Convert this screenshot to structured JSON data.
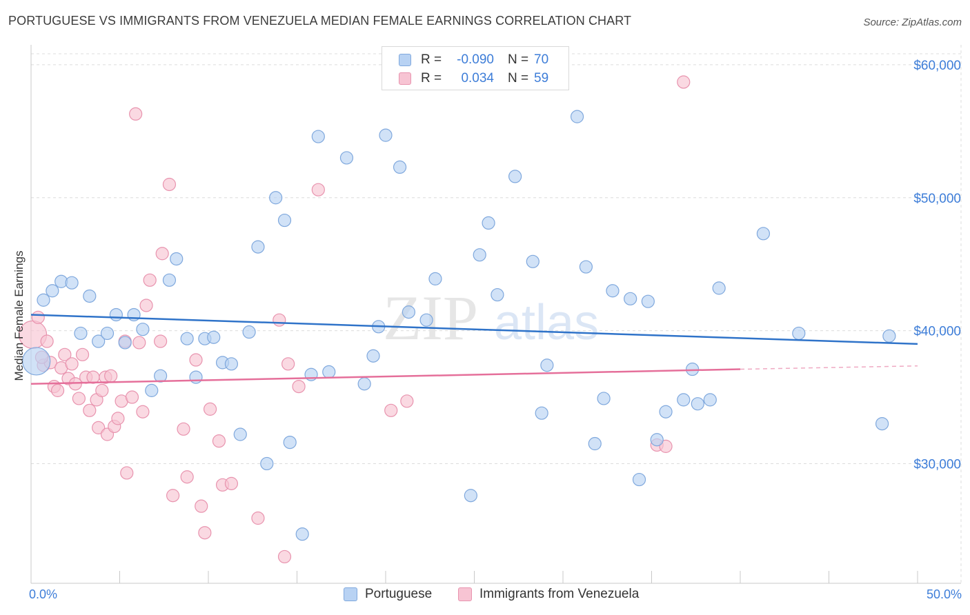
{
  "header": {
    "title": "PORTUGUESE VS IMMIGRANTS FROM VENEZUELA MEDIAN FEMALE EARNINGS CORRELATION CHART",
    "source": "Source: ZipAtlas.com"
  },
  "watermark": "ZIPatlas",
  "legend": {
    "rows": [
      {
        "r_label": "R =",
        "r_value": "-0.090",
        "n_label": "N =",
        "n_value": "70"
      },
      {
        "r_label": "R =",
        "r_value": "0.034",
        "n_label": "N =",
        "n_value": "59"
      }
    ]
  },
  "bottom_legend": {
    "items": [
      "Portuguese",
      "Immigrants from Venezuela"
    ]
  },
  "x_axis": {
    "min_label": "0.0%",
    "max_label": "50.0%"
  },
  "y_axis": {
    "title": "Median Female Earnings"
  },
  "colors": {
    "blue_fill": "#b8d2f3",
    "blue_stroke": "#7fa8dd",
    "blue_line": "#2f73c9",
    "pink_fill": "#f7c4d3",
    "pink_stroke": "#e893ae",
    "pink_line": "#e56f9a",
    "tick_label": "#3d7dd8",
    "grid": "#dcdcdc"
  },
  "chart_data": {
    "type": "scatter",
    "xlim": [
      0,
      50
    ],
    "ylim": [
      21000,
      61500
    ],
    "y_ticks": [
      30000,
      40000,
      50000,
      60000
    ],
    "y_tick_labels": [
      "$30,000",
      "$40,000",
      "$50,000",
      "$60,000"
    ],
    "grid": true,
    "series": [
      {
        "name": "Portuguese",
        "trend": {
          "x": [
            0,
            50
          ],
          "y": [
            41200,
            39000
          ]
        },
        "points": [
          {
            "x": 0.3,
            "y": 37700,
            "big": true
          },
          {
            "x": 0.7,
            "y": 42300
          },
          {
            "x": 1.2,
            "y": 43000
          },
          {
            "x": 1.7,
            "y": 43700
          },
          {
            "x": 2.3,
            "y": 43600
          },
          {
            "x": 2.8,
            "y": 39800
          },
          {
            "x": 3.3,
            "y": 42600
          },
          {
            "x": 3.8,
            "y": 39200
          },
          {
            "x": 4.3,
            "y": 39800
          },
          {
            "x": 4.8,
            "y": 41200
          },
          {
            "x": 5.3,
            "y": 39100
          },
          {
            "x": 5.8,
            "y": 41200
          },
          {
            "x": 6.3,
            "y": 40100
          },
          {
            "x": 6.8,
            "y": 35500
          },
          {
            "x": 7.3,
            "y": 36600
          },
          {
            "x": 7.8,
            "y": 43800
          },
          {
            "x": 8.2,
            "y": 45400
          },
          {
            "x": 8.8,
            "y": 39400
          },
          {
            "x": 9.3,
            "y": 36500
          },
          {
            "x": 9.8,
            "y": 39400
          },
          {
            "x": 10.3,
            "y": 39500
          },
          {
            "x": 10.8,
            "y": 37600
          },
          {
            "x": 11.3,
            "y": 37500
          },
          {
            "x": 11.8,
            "y": 32200
          },
          {
            "x": 12.3,
            "y": 39900
          },
          {
            "x": 12.8,
            "y": 46300
          },
          {
            "x": 13.3,
            "y": 30000
          },
          {
            "x": 13.8,
            "y": 50000
          },
          {
            "x": 14.3,
            "y": 48300
          },
          {
            "x": 14.6,
            "y": 31600
          },
          {
            "x": 15.3,
            "y": 24700
          },
          {
            "x": 15.8,
            "y": 36700
          },
          {
            "x": 16.2,
            "y": 54600
          },
          {
            "x": 16.8,
            "y": 36900
          },
          {
            "x": 17.8,
            "y": 53000
          },
          {
            "x": 18.8,
            "y": 36000
          },
          {
            "x": 19.3,
            "y": 38100
          },
          {
            "x": 19.6,
            "y": 40300
          },
          {
            "x": 20.0,
            "y": 54700
          },
          {
            "x": 20.8,
            "y": 52300
          },
          {
            "x": 21.3,
            "y": 41400
          },
          {
            "x": 22.3,
            "y": 40800
          },
          {
            "x": 22.8,
            "y": 43900
          },
          {
            "x": 24.8,
            "y": 27600
          },
          {
            "x": 25.3,
            "y": 45700
          },
          {
            "x": 25.8,
            "y": 48100
          },
          {
            "x": 26.3,
            "y": 42700
          },
          {
            "x": 27.3,
            "y": 51600
          },
          {
            "x": 28.3,
            "y": 45200
          },
          {
            "x": 28.8,
            "y": 33800
          },
          {
            "x": 29.1,
            "y": 37400
          },
          {
            "x": 30.8,
            "y": 56100
          },
          {
            "x": 31.3,
            "y": 44800
          },
          {
            "x": 31.8,
            "y": 31500
          },
          {
            "x": 32.3,
            "y": 34900
          },
          {
            "x": 32.8,
            "y": 43000
          },
          {
            "x": 33.8,
            "y": 42400
          },
          {
            "x": 34.3,
            "y": 28800
          },
          {
            "x": 34.8,
            "y": 42200
          },
          {
            "x": 35.3,
            "y": 31800
          },
          {
            "x": 35.8,
            "y": 33900
          },
          {
            "x": 36.8,
            "y": 34800
          },
          {
            "x": 37.3,
            "y": 37100
          },
          {
            "x": 37.6,
            "y": 34500
          },
          {
            "x": 38.3,
            "y": 34800
          },
          {
            "x": 38.8,
            "y": 43200
          },
          {
            "x": 41.3,
            "y": 47300
          },
          {
            "x": 43.3,
            "y": 39800
          },
          {
            "x": 48.0,
            "y": 33000
          },
          {
            "x": 48.4,
            "y": 39600
          }
        ]
      },
      {
        "name": "Immigrants from Venezuela",
        "trend": {
          "x": [
            0,
            40
          ],
          "y": [
            36000,
            37100
          ]
        },
        "trend_dashed": {
          "x": [
            40,
            50
          ],
          "y": [
            37100,
            37350
          ]
        },
        "points": [
          {
            "x": 0.1,
            "y": 39700,
            "big": true
          },
          {
            "x": 0.4,
            "y": 41000
          },
          {
            "x": 0.7,
            "y": 37400
          },
          {
            "x": 0.9,
            "y": 39200
          },
          {
            "x": 1.1,
            "y": 37600
          },
          {
            "x": 1.3,
            "y": 35800
          },
          {
            "x": 1.5,
            "y": 35500
          },
          {
            "x": 1.7,
            "y": 37200
          },
          {
            "x": 1.9,
            "y": 38200
          },
          {
            "x": 2.1,
            "y": 36400
          },
          {
            "x": 2.3,
            "y": 37500
          },
          {
            "x": 2.5,
            "y": 36000
          },
          {
            "x": 2.7,
            "y": 34900
          },
          {
            "x": 2.9,
            "y": 38200
          },
          {
            "x": 3.1,
            "y": 36500
          },
          {
            "x": 3.3,
            "y": 34000
          },
          {
            "x": 3.5,
            "y": 36500
          },
          {
            "x": 3.7,
            "y": 34800
          },
          {
            "x": 3.8,
            "y": 32700
          },
          {
            "x": 4.0,
            "y": 35500
          },
          {
            "x": 4.2,
            "y": 36500
          },
          {
            "x": 4.3,
            "y": 32200
          },
          {
            "x": 4.5,
            "y": 36600
          },
          {
            "x": 4.7,
            "y": 32800
          },
          {
            "x": 4.9,
            "y": 33400
          },
          {
            "x": 5.1,
            "y": 34700
          },
          {
            "x": 5.3,
            "y": 39200
          },
          {
            "x": 5.4,
            "y": 29300
          },
          {
            "x": 5.7,
            "y": 35000
          },
          {
            "x": 5.9,
            "y": 56300
          },
          {
            "x": 6.1,
            "y": 39100
          },
          {
            "x": 6.3,
            "y": 33900
          },
          {
            "x": 6.5,
            "y": 41900
          },
          {
            "x": 6.7,
            "y": 43800
          },
          {
            "x": 7.3,
            "y": 39200
          },
          {
            "x": 7.4,
            "y": 45800
          },
          {
            "x": 7.8,
            "y": 51000
          },
          {
            "x": 8.0,
            "y": 27600
          },
          {
            "x": 8.6,
            "y": 32600
          },
          {
            "x": 8.8,
            "y": 29000
          },
          {
            "x": 9.3,
            "y": 37800
          },
          {
            "x": 9.6,
            "y": 26800
          },
          {
            "x": 9.8,
            "y": 24800
          },
          {
            "x": 10.1,
            "y": 34100
          },
          {
            "x": 10.6,
            "y": 31700
          },
          {
            "x": 10.8,
            "y": 28400
          },
          {
            "x": 11.3,
            "y": 28500
          },
          {
            "x": 12.8,
            "y": 25900
          },
          {
            "x": 14.0,
            "y": 40800
          },
          {
            "x": 14.3,
            "y": 23000
          },
          {
            "x": 14.5,
            "y": 37500
          },
          {
            "x": 15.1,
            "y": 35800
          },
          {
            "x": 16.2,
            "y": 50600
          },
          {
            "x": 20.3,
            "y": 34000
          },
          {
            "x": 21.2,
            "y": 34700
          },
          {
            "x": 35.3,
            "y": 31400
          },
          {
            "x": 35.8,
            "y": 31300
          },
          {
            "x": 36.8,
            "y": 58700
          },
          {
            "x": 0.6,
            "y": 38000
          }
        ]
      }
    ]
  }
}
